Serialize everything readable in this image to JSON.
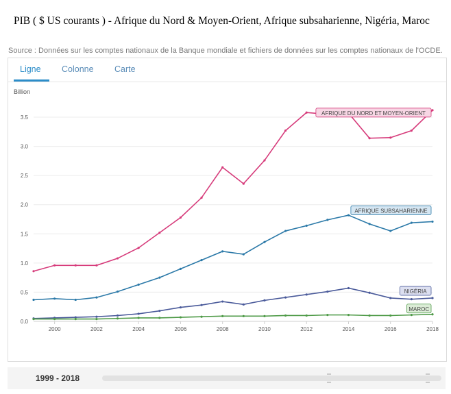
{
  "header": {
    "title": "PIB ( $ US courants ) -  Afrique du Nord & Moyen-Orient, Afrique subsaharienne, Nigéria, Maroc",
    "source": "Source : Données sur les comptes nationaux de la Banque mondiale et fichiers de données sur les comptes nationaux de l'OCDE."
  },
  "tabs": [
    {
      "label": "Ligne"
    },
    {
      "label": "Colonne"
    },
    {
      "label": "Carte"
    }
  ],
  "range": {
    "label": "1999 - 2018"
  },
  "colors": {
    "accent": "#2c8dc9"
  },
  "chart_data": {
    "type": "line",
    "ylabel": "Billion",
    "xlabel": "",
    "ylim": [
      0,
      3.9
    ],
    "xlim": [
      1999,
      2018
    ],
    "grid": "horizontal",
    "x": [
      1999,
      2000,
      2001,
      2002,
      2003,
      2004,
      2005,
      2006,
      2007,
      2008,
      2009,
      2010,
      2011,
      2012,
      2013,
      2014,
      2015,
      2016,
      2017,
      2018
    ],
    "x_ticks": [
      "2000",
      "2002",
      "2004",
      "2006",
      "2008",
      "2010",
      "2012",
      "2014",
      "2016",
      "2018"
    ],
    "y_ticks": [
      "0.0",
      "0.5",
      "1.0",
      "1.5",
      "2.0",
      "2.5",
      "3.0",
      "3.5"
    ],
    "series": [
      {
        "name": "AFRIQUE DU NORD ET MOYEN-ORIENT",
        "color": "#d63a7a",
        "label_fill": "#f7d6e4",
        "label_stroke": "#d63a7a",
        "values": [
          0.86,
          0.96,
          0.96,
          0.96,
          1.08,
          1.26,
          1.52,
          1.78,
          2.12,
          2.64,
          2.36,
          2.76,
          3.27,
          3.58,
          3.55,
          3.57,
          3.14,
          3.15,
          3.27,
          3.62
        ]
      },
      {
        "name": "AFRIQUE SUBSAHARIENNE",
        "color": "#2b79a8",
        "label_fill": "#d5e6f2",
        "label_stroke": "#2b79a8",
        "values": [
          0.37,
          0.39,
          0.37,
          0.41,
          0.51,
          0.63,
          0.75,
          0.9,
          1.05,
          1.2,
          1.15,
          1.36,
          1.55,
          1.64,
          1.74,
          1.82,
          1.67,
          1.55,
          1.69,
          1.71
        ]
      },
      {
        "name": "NIGÉRIA",
        "color": "#4a5a9a",
        "label_fill": "#dcdff0",
        "label_stroke": "#4a5a9a",
        "values": [
          0.05,
          0.06,
          0.07,
          0.08,
          0.1,
          0.13,
          0.18,
          0.24,
          0.28,
          0.34,
          0.29,
          0.36,
          0.41,
          0.46,
          0.51,
          0.57,
          0.49,
          0.4,
          0.38,
          0.4
        ]
      },
      {
        "name": "MAROC",
        "color": "#4e9a47",
        "label_fill": "#dbecd6",
        "label_stroke": "#4e9a47",
        "values": [
          0.04,
          0.04,
          0.04,
          0.04,
          0.05,
          0.06,
          0.06,
          0.07,
          0.08,
          0.09,
          0.09,
          0.09,
          0.1,
          0.1,
          0.11,
          0.11,
          0.1,
          0.1,
          0.11,
          0.12
        ]
      }
    ]
  }
}
